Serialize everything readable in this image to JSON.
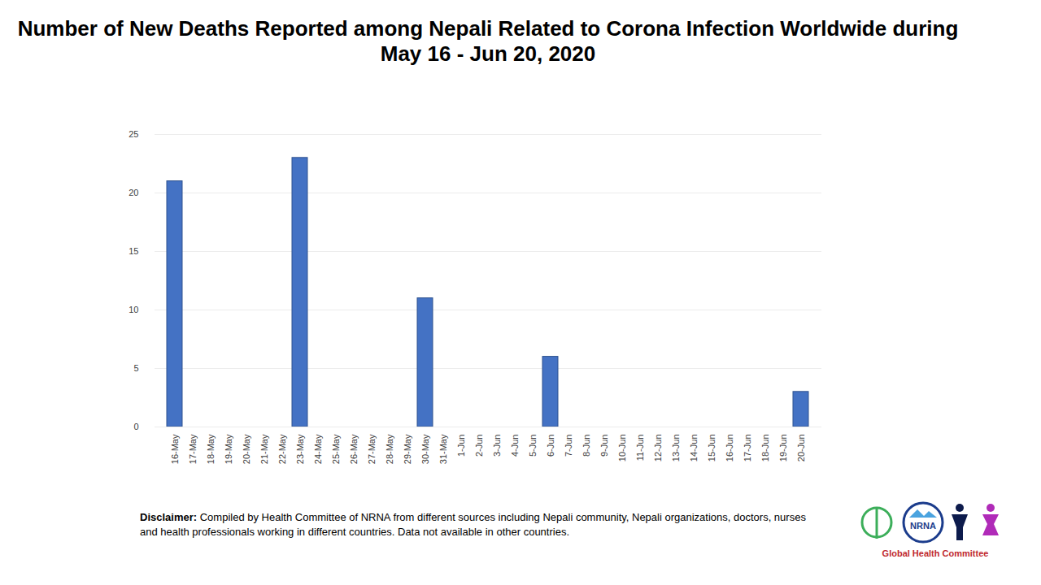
{
  "chart_data": {
    "type": "bar",
    "title": "Number of New Deaths Reported among Nepali Related to Corona Infection Worldwide during May 16 - Jun 20, 2020",
    "categories": [
      "16-May",
      "17-May",
      "18-May",
      "19-May",
      "20-May",
      "21-May",
      "22-May",
      "23-May",
      "24-May",
      "25-May",
      "26-May",
      "27-May",
      "28-May",
      "29-May",
      "30-May",
      "31-May",
      "1-Jun",
      "2-Jun",
      "3-Jun",
      "4-Jun",
      "5-Jun",
      "6-Jun",
      "7-Jun",
      "8-Jun",
      "9-Jun",
      "10-Jun",
      "11-Jun",
      "12-Jun",
      "13-Jun",
      "14-Jun",
      "15-Jun",
      "16-Jun",
      "17-Jun",
      "18-Jun",
      "19-Jun",
      "20-Jun"
    ],
    "values": [
      21,
      null,
      null,
      null,
      null,
      null,
      null,
      23,
      null,
      null,
      null,
      null,
      null,
      null,
      11,
      null,
      null,
      null,
      null,
      null,
      null,
      6,
      null,
      null,
      null,
      null,
      null,
      null,
      0,
      null,
      null,
      null,
      null,
      null,
      null,
      3
    ],
    "color": "#4472c4",
    "ylim": [
      0,
      25
    ],
    "yticks": [
      0,
      5,
      10,
      15,
      20,
      25
    ],
    "grid": true,
    "annotations": {
      "disclaimer_label": "Disclaimer:",
      "disclaimer": "Compiled by Health Committee of NRNA from different sources including Nepali community, Nepali organizations, doctors, nurses and health professionals working in different countries. Data not available in other countries.",
      "logo": [
        "NRNA",
        "Global Health Committee"
      ]
    }
  }
}
